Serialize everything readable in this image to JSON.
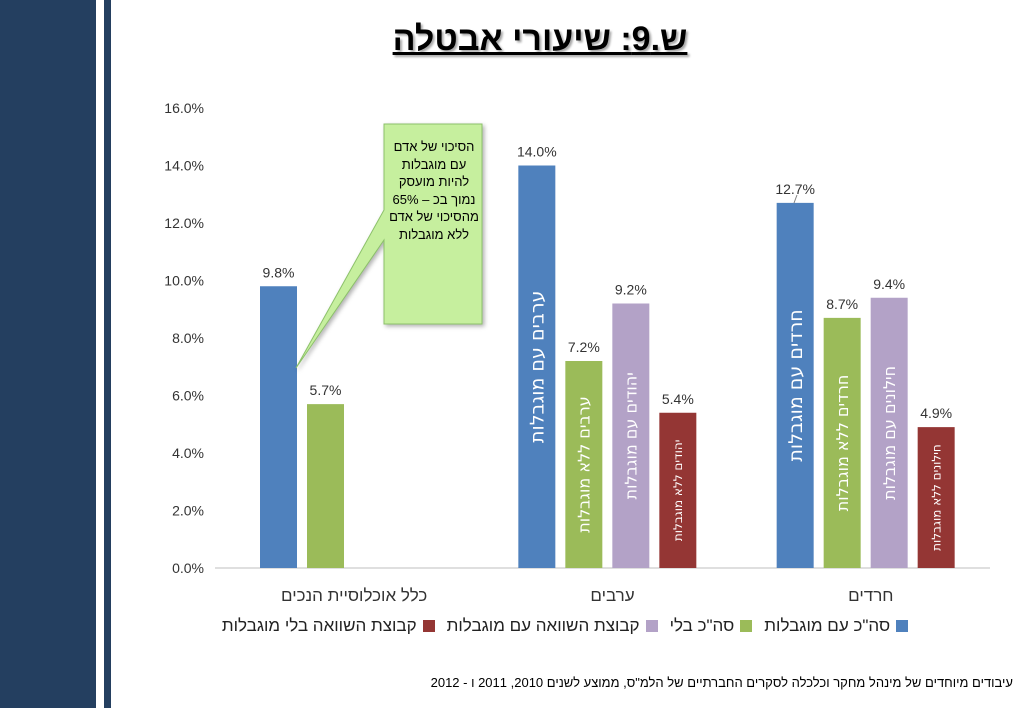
{
  "slide": {
    "title": "ש.9: שיעורי אבטלה",
    "footnote": "עיבודים מיוחדים של מינהל מחקר וכלכלה לסקרים החברתיים של הלמ\"ס, ממוצע לשנים 2010, 2011 ו - 2012"
  },
  "callout": {
    "text": "הסיכוי של אדם עם מוגבלות להיות מועסק נמוך בכ – 65% מהסיכוי של אדם ללא מוגבלות"
  },
  "colors": {
    "disabled": "#4f81bd",
    "total_without": "#9bbb59",
    "comparison_with": "#b3a2c7",
    "comparison_without": "#943634",
    "callout_fill": "#c6ef9e",
    "callout_border": "#8cc16a",
    "band": "#243f60"
  },
  "chart_data": {
    "type": "bar",
    "categories": [
      "כלל אוכלוסיית הנכים",
      "ערבים",
      "חרדים"
    ],
    "ylim": [
      0,
      0.16
    ],
    "yticks": [
      "0.0%",
      "2.0%",
      "4.0%",
      "6.0%",
      "8.0%",
      "10.0%",
      "12.0%",
      "14.0%",
      "16.0%"
    ],
    "series": [
      {
        "name": "סה\"כ עם מוגבלות",
        "values": [
          0.098,
          0.14,
          0.127
        ],
        "labels": [
          "9.8%",
          "14.0%",
          "12.7%"
        ]
      },
      {
        "name": "סה\"כ בלי",
        "values": [
          0.057,
          0.072,
          0.087
        ],
        "labels": [
          "5.7%",
          "7.2%",
          "8.7%"
        ]
      },
      {
        "name": "קבוצת השוואה עם מוגבלות",
        "values": [
          null,
          0.092,
          0.094
        ],
        "labels": [
          null,
          "9.2%",
          "9.4%"
        ]
      },
      {
        "name": "קבוצת השוואה בלי מוגבלות",
        "values": [
          null,
          0.054,
          0.049
        ],
        "labels": [
          null,
          "5.4%",
          "4.9%"
        ]
      }
    ],
    "bar_labels": [
      [
        null,
        "ערבים עם מוגבלות",
        "חרדים עם  מוגבלות"
      ],
      [
        null,
        "ערבים ללא מוגבלות",
        "חרדים  ללא מוגבלות"
      ],
      [
        null,
        "יהודים עם מוגבלות",
        "חילונים עם מוגבלות"
      ],
      [
        null,
        "יהודים ללא מוגבלות",
        "חילונים ללא מוגבלות"
      ]
    ],
    "grid": false,
    "legend": "bottom"
  }
}
